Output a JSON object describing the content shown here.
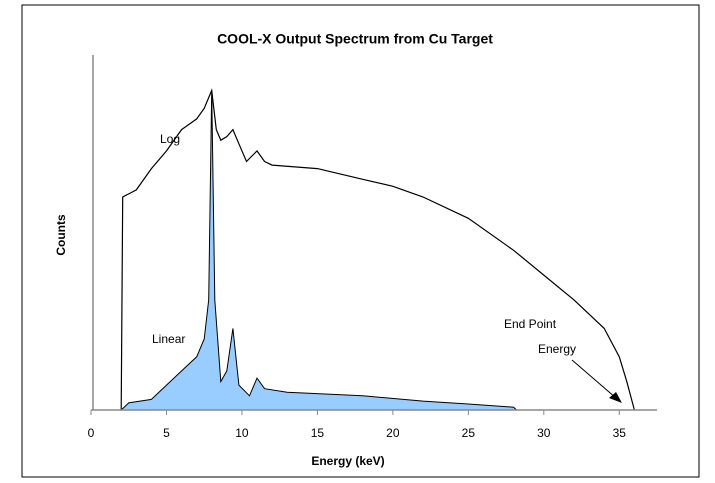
{
  "chart_data": {
    "type": "line",
    "title": "COOL-X Output Spectrum from Cu Target",
    "x_label": "Energy (keV)",
    "y_label": "Counts",
    "xlim": [
      0,
      37.5
    ],
    "xticks": [
      0,
      5,
      10,
      15,
      20,
      25,
      30,
      35
    ],
    "ylim": [
      0,
      100
    ],
    "series": [
      {
        "name": "Log",
        "color": "#000000",
        "fill": false,
        "x": [
          2.0,
          2.1,
          3,
          4,
          5,
          6,
          7,
          7.5,
          8.0,
          8.3,
          8.6,
          9.0,
          9.4,
          9.8,
          10.3,
          11,
          11.5,
          12,
          15,
          18,
          20,
          22,
          25,
          28,
          30,
          32,
          34,
          35,
          35.5,
          36
        ],
        "values": [
          0,
          60,
          62,
          68,
          73,
          79,
          82,
          85,
          90,
          79,
          76,
          77,
          79,
          75,
          70,
          73,
          70,
          69,
          68,
          65,
          63,
          60,
          54,
          45,
          38,
          31,
          23,
          15,
          8,
          0
        ]
      },
      {
        "name": "Linear",
        "color": "#99ccff",
        "fill": true,
        "x": [
          2,
          2.5,
          4,
          5,
          6,
          7,
          7.5,
          7.8,
          8.0,
          8.2,
          8.6,
          9.0,
          9.4,
          9.8,
          10.5,
          11,
          11.5,
          13,
          18,
          22,
          25,
          28,
          28.2
        ],
        "values": [
          0,
          2,
          3,
          7,
          11,
          15,
          20,
          31,
          90,
          31,
          8,
          11,
          23,
          7,
          4,
          9,
          6,
          5,
          4,
          2.5,
          1.7,
          0.8,
          0
        ]
      }
    ],
    "annotation": [
      "End Point",
      "Energy"
    ]
  }
}
